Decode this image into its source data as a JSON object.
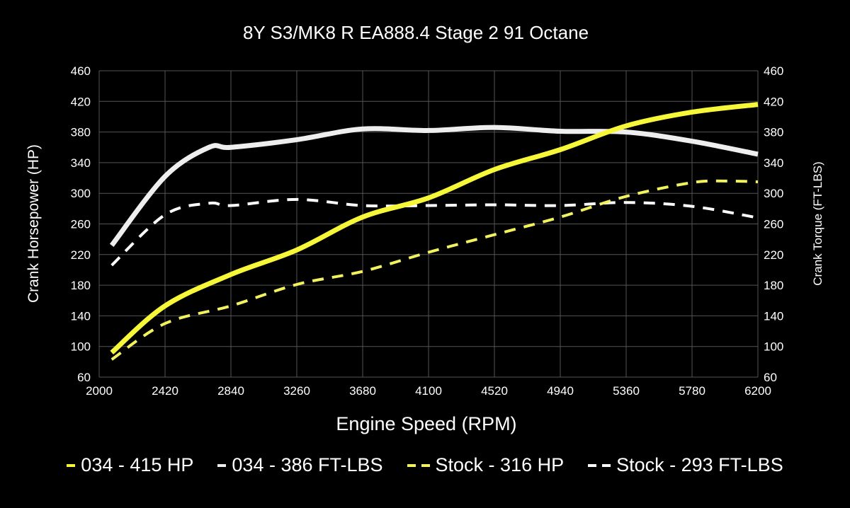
{
  "chart_data": {
    "type": "line",
    "title": "8Y S3/MK8 R EA888.4 Stage 2 91 Octane",
    "xlabel": "Engine Speed (RPM)",
    "ylabel": "Crank Horsepower (HP)",
    "y2label": "Crank Torque (FT-LBS)",
    "xlim": [
      2000,
      6200
    ],
    "ylim": [
      60,
      460
    ],
    "y2lim": [
      60,
      460
    ],
    "xticks": [
      "2000",
      "2420",
      "2840",
      "3260",
      "3680",
      "4100",
      "4520",
      "4940",
      "5360",
      "5780",
      "6200"
    ],
    "yticks": [
      "60",
      "100",
      "140",
      "180",
      "220",
      "260",
      "300",
      "340",
      "380",
      "420",
      "460"
    ],
    "grid": true,
    "legend_position": "bottom",
    "series": [
      {
        "name": "034 - 415 HP",
        "color": "#f7f73a",
        "style": "solid",
        "axis": "left",
        "x": [
          2080,
          2420,
          2840,
          3260,
          3680,
          4100,
          4520,
          4940,
          5360,
          5780,
          6200
        ],
        "y": [
          92,
          153,
          194,
          226,
          269,
          294,
          331,
          357,
          388,
          406,
          416
        ]
      },
      {
        "name": "034 - 386 FT-LBS",
        "color": "#eeeeee",
        "style": "solid",
        "axis": "right",
        "x": [
          2080,
          2420,
          2700,
          2840,
          3260,
          3680,
          4100,
          4520,
          4940,
          5360,
          5780,
          6200
        ],
        "y": [
          232,
          322,
          360,
          360,
          370,
          384,
          382,
          386,
          381,
          380,
          368,
          351
        ]
      },
      {
        "name": "Stock - 316 HP",
        "color": "#f2f25e",
        "style": "dashed",
        "axis": "left",
        "x": [
          2080,
          2420,
          2840,
          3260,
          3680,
          4100,
          4520,
          4940,
          5360,
          5780,
          6000,
          6200
        ],
        "y": [
          83,
          130,
          153,
          181,
          198,
          223,
          246,
          269,
          296,
          314,
          316,
          315
        ]
      },
      {
        "name": "Stock - 293 FT-LBS",
        "color": "#ffffff",
        "style": "dashed",
        "axis": "right",
        "x": [
          2080,
          2420,
          2700,
          2840,
          3260,
          3680,
          4100,
          4520,
          4940,
          5360,
          5780,
          6200
        ],
        "y": [
          206,
          272,
          287,
          284,
          292,
          284,
          284,
          285,
          284,
          288,
          283,
          268
        ]
      }
    ]
  }
}
